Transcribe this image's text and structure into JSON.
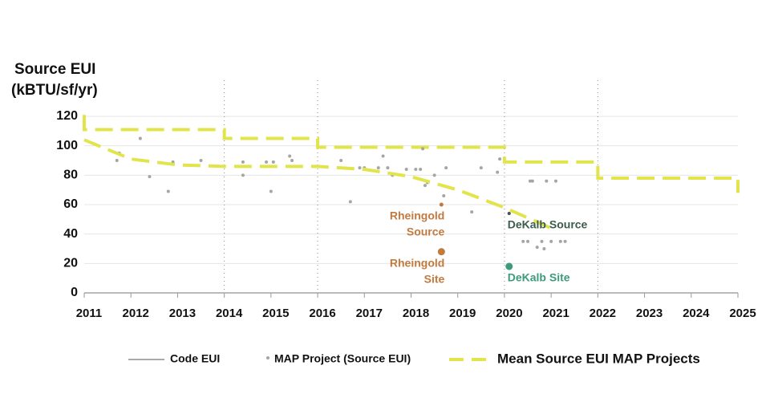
{
  "chart_data": {
    "type": "combo",
    "y_title": [
      "Source EUI",
      "(kBTU/sf/yr)"
    ],
    "xlim": [
      2011,
      2025
    ],
    "xticks": [
      2011,
      2012,
      2013,
      2014,
      2015,
      2016,
      2017,
      2018,
      2019,
      2020,
      2021,
      2022,
      2023,
      2024,
      2025
    ],
    "ylim": [
      0,
      120
    ],
    "yticks": [
      0,
      20,
      40,
      60,
      80,
      100,
      120
    ],
    "grid": true,
    "vlines": [
      2014,
      2016,
      2020,
      2022
    ],
    "legend": "bottom",
    "series": [
      {
        "name": "Code EUI",
        "type": "line",
        "color": "#e2e44c",
        "legend_color": "#555555",
        "dashed": true,
        "x": [
          2011,
          2011,
          2014,
          2014,
          2016,
          2016,
          2020,
          2020,
          2022,
          2022,
          2025,
          2025
        ],
        "values": [
          121,
          111,
          111,
          105,
          105,
          99,
          99,
          89,
          89,
          78,
          78,
          68
        ]
      },
      {
        "name": "MAP Project (Source EUI)",
        "type": "scatter",
        "color": "#a5a5a5",
        "x": [
          2011.7,
          2011.75,
          2012.2,
          2012.4,
          2012.8,
          2012.9,
          2013.5,
          2014.4,
          2014.4,
          2014.9,
          2015.0,
          2015.05,
          2015.4,
          2015.45,
          2016.5,
          2016.7,
          2016.9,
          2017.0,
          2017.3,
          2017.4,
          2017.5,
          2017.6,
          2017.9,
          2018.1,
          2018.2,
          2018.25,
          2018.3,
          2018.35,
          2018.5,
          2018.7,
          2018.75,
          2019.3,
          2019.5,
          2019.85,
          2019.9,
          2020.1,
          2020.4,
          2020.5,
          2020.55,
          2020.6,
          2020.7,
          2020.8,
          2020.85,
          2020.9,
          2021.0,
          2021.1,
          2021.2,
          2021.3
        ],
        "values": [
          90,
          95,
          105,
          79,
          69,
          89,
          90,
          80,
          89,
          89,
          69,
          89,
          93,
          90,
          90,
          62,
          85,
          85,
          85,
          93,
          85,
          80,
          84,
          84,
          84,
          98,
          73,
          75,
          80,
          66,
          85,
          55,
          85,
          82,
          91,
          54,
          35,
          35,
          76,
          76,
          31,
          35,
          30,
          76,
          35,
          76,
          35,
          35
        ]
      },
      {
        "name": "Mean Source EUI MAP Projects",
        "type": "line",
        "color": "#e2e44c",
        "dashed": true,
        "x": [
          2011,
          2012,
          2013,
          2014,
          2015,
          2016,
          2017,
          2018,
          2019,
          2020,
          2021
        ],
        "values": [
          104,
          91,
          87,
          86,
          86,
          86,
          84,
          79,
          70,
          58,
          44
        ]
      }
    ],
    "highlights": [
      {
        "label": [
          "Rheingold",
          "Source"
        ],
        "x": 2018.65,
        "value": 60,
        "color": "#c27a3e",
        "size": 2.5,
        "anchor": "end"
      },
      {
        "label": [
          "Rheingold",
          "Site"
        ],
        "x": 2018.65,
        "value": 28,
        "color": "#c27a3e",
        "size": 4.5,
        "anchor": "end"
      },
      {
        "label": [
          "DeKalb Source"
        ],
        "x": 2020.1,
        "value": 54,
        "color": "#3c5c4c",
        "size": 2,
        "anchor": "start"
      },
      {
        "label": [
          "DeKalb Site"
        ],
        "x": 2020.1,
        "value": 18,
        "color": "#3d9a7c",
        "size": 4.5,
        "anchor": "start"
      }
    ]
  }
}
